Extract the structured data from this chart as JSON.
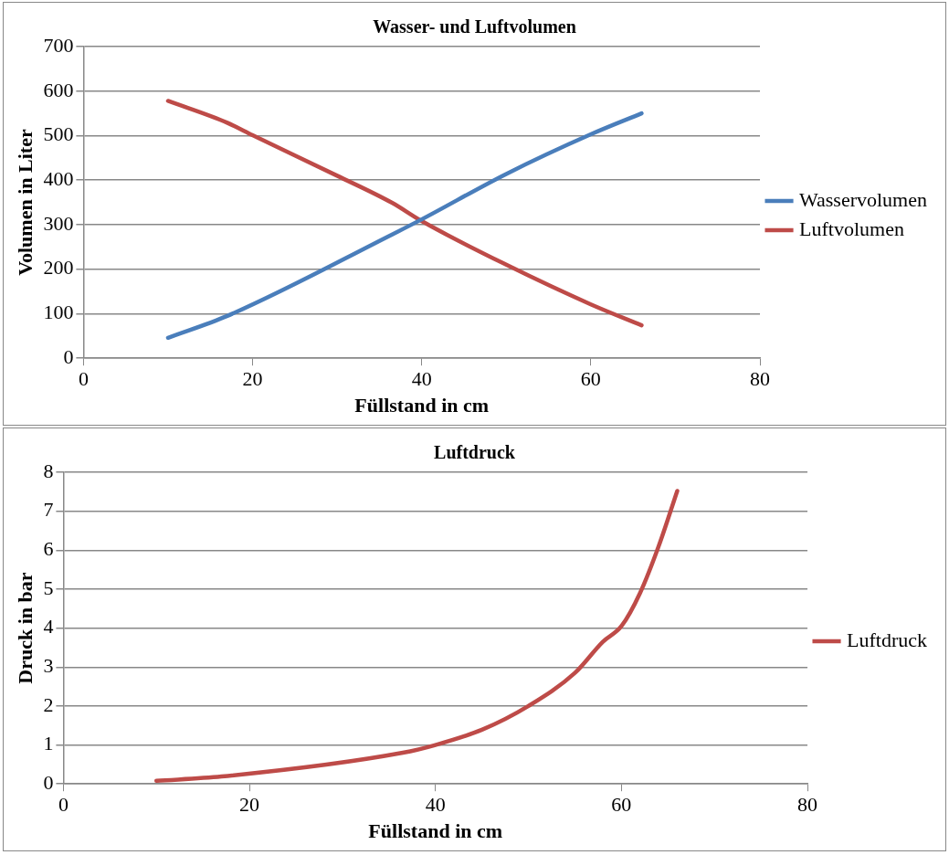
{
  "chart_data": [
    {
      "type": "line",
      "title": "Wasser- und Luftvolumen",
      "xlabel": "Füllstand in cm",
      "ylabel": "Volumen in Liter",
      "xlim": [
        0,
        80
      ],
      "xticks": [
        0,
        20,
        40,
        60,
        80
      ],
      "ylim": [
        0,
        700
      ],
      "yticks": [
        0,
        100,
        200,
        300,
        400,
        500,
        600,
        700
      ],
      "grid": "y",
      "legend": "right",
      "marker": "none",
      "line_style": "solid",
      "series": [
        {
          "name": "Wasservolumen",
          "color": "#4a7ebb",
          "x": [
            10,
            17,
            36.5,
            40,
            50,
            60,
            66
          ],
          "values": [
            46,
            95,
            278,
            312,
            414,
            503,
            550
          ]
        },
        {
          "name": "Luftvolumen",
          "color": "#be4b48",
          "x": [
            10,
            17,
            20,
            30,
            36.5,
            40,
            50,
            60,
            66
          ],
          "values": [
            578,
            529,
            501,
            410,
            349,
            308,
            210,
            121,
            74
          ]
        }
      ]
    },
    {
      "type": "line",
      "title": "Luftdruck",
      "xlabel": "Füllstand in cm",
      "ylabel": "Druck in bar",
      "xlim": [
        0,
        80
      ],
      "xticks": [
        0,
        20,
        40,
        60,
        80
      ],
      "ylim": [
        0,
        8
      ],
      "yticks": [
        0,
        1,
        2,
        3,
        4,
        5,
        6,
        7,
        8
      ],
      "grid": "y",
      "legend": "right",
      "marker": "none",
      "line_style": "solid",
      "series": [
        {
          "name": "Luftdruck",
          "color": "#be4b48",
          "x": [
            10,
            17,
            36.5,
            40,
            45,
            50,
            55,
            58,
            60,
            62,
            64,
            66
          ],
          "values": [
            0.08,
            0.19,
            0.8,
            1.0,
            1.39,
            2.0,
            2.85,
            3.65,
            4.05,
            4.9,
            6.1,
            7.52
          ]
        }
      ]
    }
  ]
}
